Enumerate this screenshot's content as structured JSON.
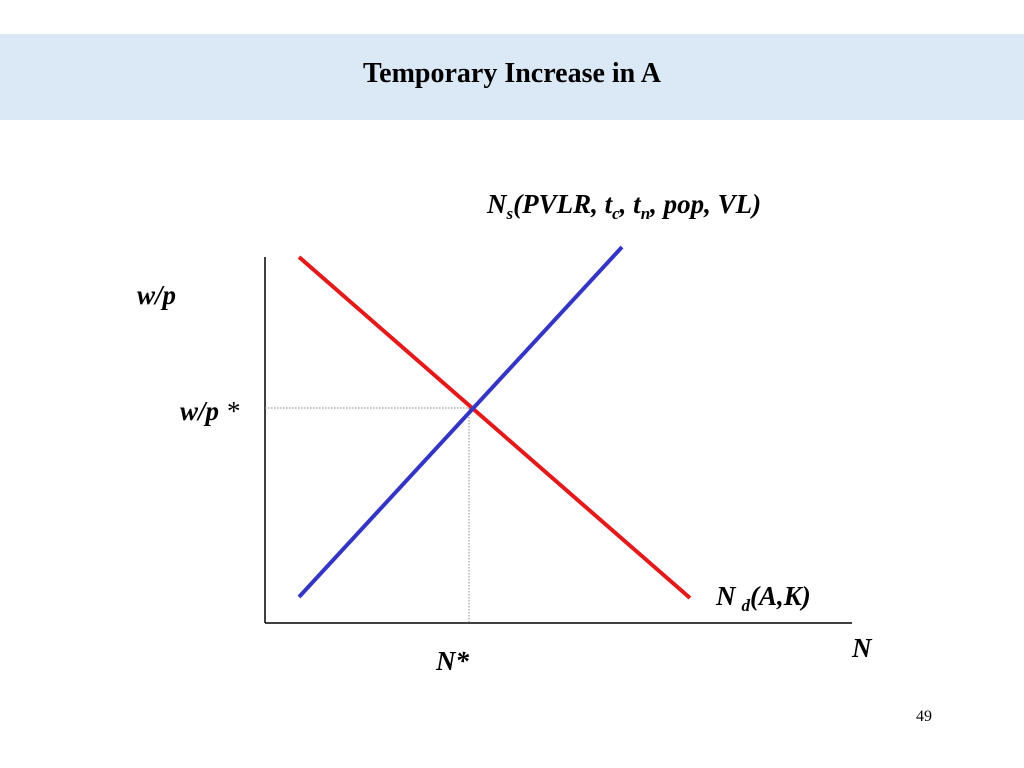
{
  "slide": {
    "title": "Temporary Increase in A",
    "page_number": "49"
  },
  "diagram": {
    "colors": {
      "supply": "#3535c4",
      "demand": "#e31a1a",
      "axis": "#000000",
      "guide": "#888888",
      "title_band": "#dbe8f5"
    },
    "y_axis_label": "w/p",
    "x_axis_label": "N",
    "equilibrium_wage_label": {
      "main": "w/p",
      "star": "*"
    },
    "equilibrium_labor_label": "N*",
    "supply_label": {
      "symbol": "N",
      "subscript": "s",
      "open": "(PVLR, t",
      "sub_c": "c",
      "comma1": ", t",
      "sub_n": "n",
      "close": ", pop, VL)"
    },
    "demand_label": {
      "symbol": "N",
      "subscript": "d",
      "args": "(A,K)"
    }
  }
}
